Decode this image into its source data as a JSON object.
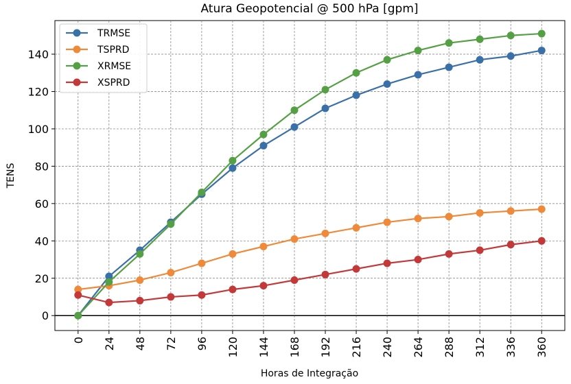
{
  "chart_data": {
    "type": "line",
    "title": "Atura Geopotencial @ 500 hPa [gpm]",
    "xlabel": "Horas de Integração",
    "ylabel": "TENS",
    "x": [
      0,
      24,
      48,
      72,
      96,
      120,
      144,
      168,
      192,
      216,
      240,
      264,
      288,
      312,
      336,
      360
    ],
    "x_tick_labels": [
      "0",
      "24",
      "48",
      "72",
      "96",
      "120",
      "144",
      "168",
      "192",
      "216",
      "240",
      "264",
      "288",
      "312",
      "336",
      "360"
    ],
    "y_ticks": [
      0,
      20,
      40,
      60,
      80,
      100,
      120,
      140
    ],
    "y_tick_labels": [
      "0",
      "20",
      "40",
      "60",
      "80",
      "100",
      "120",
      "140"
    ],
    "xlim": [
      -18,
      378
    ],
    "ylim": [
      -8,
      158
    ],
    "grid": true,
    "legend_position": "top-left",
    "series": [
      {
        "name": "TRMSE",
        "color": "#3a70a8",
        "values": [
          0,
          21,
          35,
          50,
          65,
          79,
          91,
          101,
          111,
          118,
          124,
          129,
          133,
          137,
          139,
          142
        ]
      },
      {
        "name": "TSPRD",
        "color": "#ee8a3a",
        "values": [
          14,
          16,
          19,
          23,
          28,
          33,
          37,
          41,
          44,
          47,
          50,
          52,
          53,
          55,
          56,
          57
        ]
      },
      {
        "name": "XRMSE",
        "color": "#55a044",
        "values": [
          0,
          18,
          33,
          49,
          66,
          83,
          97,
          110,
          121,
          130,
          137,
          142,
          146,
          148,
          150,
          151
        ]
      },
      {
        "name": "XSPRD",
        "color": "#c3393a",
        "values": [
          11,
          7,
          8,
          10,
          11,
          14,
          16,
          19,
          22,
          25,
          28,
          30,
          33,
          35,
          38,
          40
        ]
      }
    ]
  }
}
